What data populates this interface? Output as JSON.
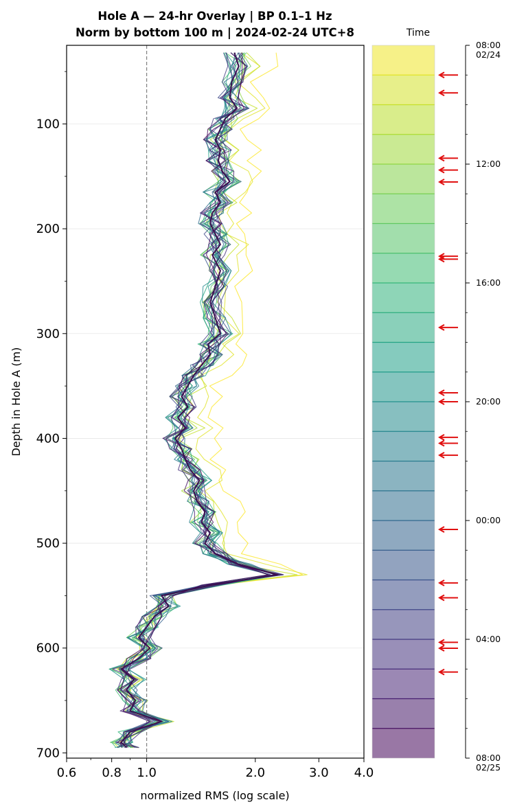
{
  "chart_data": {
    "type": "line",
    "title": "Hole A — 24-hr Overlay  |  BP 0.1–1 Hz",
    "subtitle": "Norm by bottom 100 m  |  2024-02-24 UTC+8",
    "xlabel": "normalized RMS  (log scale)",
    "ylabel": "Depth in Hole A (m)",
    "x_scale": "log",
    "xlim": [
      0.6,
      4.0
    ],
    "ylim": [
      705,
      25
    ],
    "x_ticks": [
      "0.6",
      "0.8",
      "1.0",
      "2.0",
      "3.0",
      "4.0"
    ],
    "y_ticks": [
      "100",
      "200",
      "300",
      "400",
      "500",
      "600",
      "700"
    ],
    "reference_line": {
      "x": 1.0,
      "style": "dashed",
      "color": "#808080"
    },
    "grid": "horizontal, light gray at major depth ticks",
    "legend": "none",
    "series_count": 24,
    "series_colors": "viridis colormap by hour (yellow = 08:00 02/24, dark purple = latest)",
    "median_profile": {
      "depth": [
        32,
        45,
        60,
        75,
        85,
        95,
        105,
        115,
        125,
        135,
        145,
        155,
        165,
        175,
        185,
        195,
        205,
        215,
        225,
        240,
        255,
        270,
        285,
        300,
        310,
        320,
        330,
        340,
        350,
        360,
        370,
        380,
        390,
        400,
        410,
        420,
        430,
        440,
        450,
        460,
        470,
        480,
        490,
        500,
        510,
        520,
        530,
        540,
        550,
        560,
        570,
        580,
        590,
        600,
        610,
        620,
        630,
        640,
        650,
        660,
        670,
        680,
        690,
        695
      ],
      "rms": [
        1.75,
        1.8,
        1.72,
        1.7,
        1.78,
        1.65,
        1.6,
        1.55,
        1.6,
        1.58,
        1.62,
        1.7,
        1.55,
        1.6,
        1.52,
        1.5,
        1.55,
        1.6,
        1.52,
        1.6,
        1.55,
        1.5,
        1.55,
        1.6,
        1.48,
        1.5,
        1.42,
        1.35,
        1.3,
        1.25,
        1.3,
        1.22,
        1.28,
        1.2,
        1.25,
        1.28,
        1.32,
        1.4,
        1.35,
        1.38,
        1.45,
        1.42,
        1.5,
        1.45,
        1.55,
        1.8,
        2.3,
        1.5,
        1.1,
        1.15,
        1.05,
        1.0,
        0.95,
        1.02,
        0.95,
        0.85,
        0.92,
        0.88,
        0.93,
        0.9,
        1.1,
        0.9,
        0.85,
        0.88
      ]
    },
    "colorbar": {
      "label": "Time",
      "tick_labels": [
        "08:00\n02/24",
        "12:00",
        "16:00",
        "20:00",
        "00:00",
        "04:00",
        "08:00\n02/25"
      ],
      "bands": 24
    },
    "arrows": {
      "color": "#e01010",
      "hours": [
        1.0,
        1.6,
        3.8,
        4.2,
        4.6,
        7.1,
        7.2,
        9.5,
        11.7,
        12.0,
        13.2,
        13.4,
        13.8,
        16.3,
        18.1,
        18.6,
        20.1,
        20.3,
        21.1
      ]
    }
  }
}
